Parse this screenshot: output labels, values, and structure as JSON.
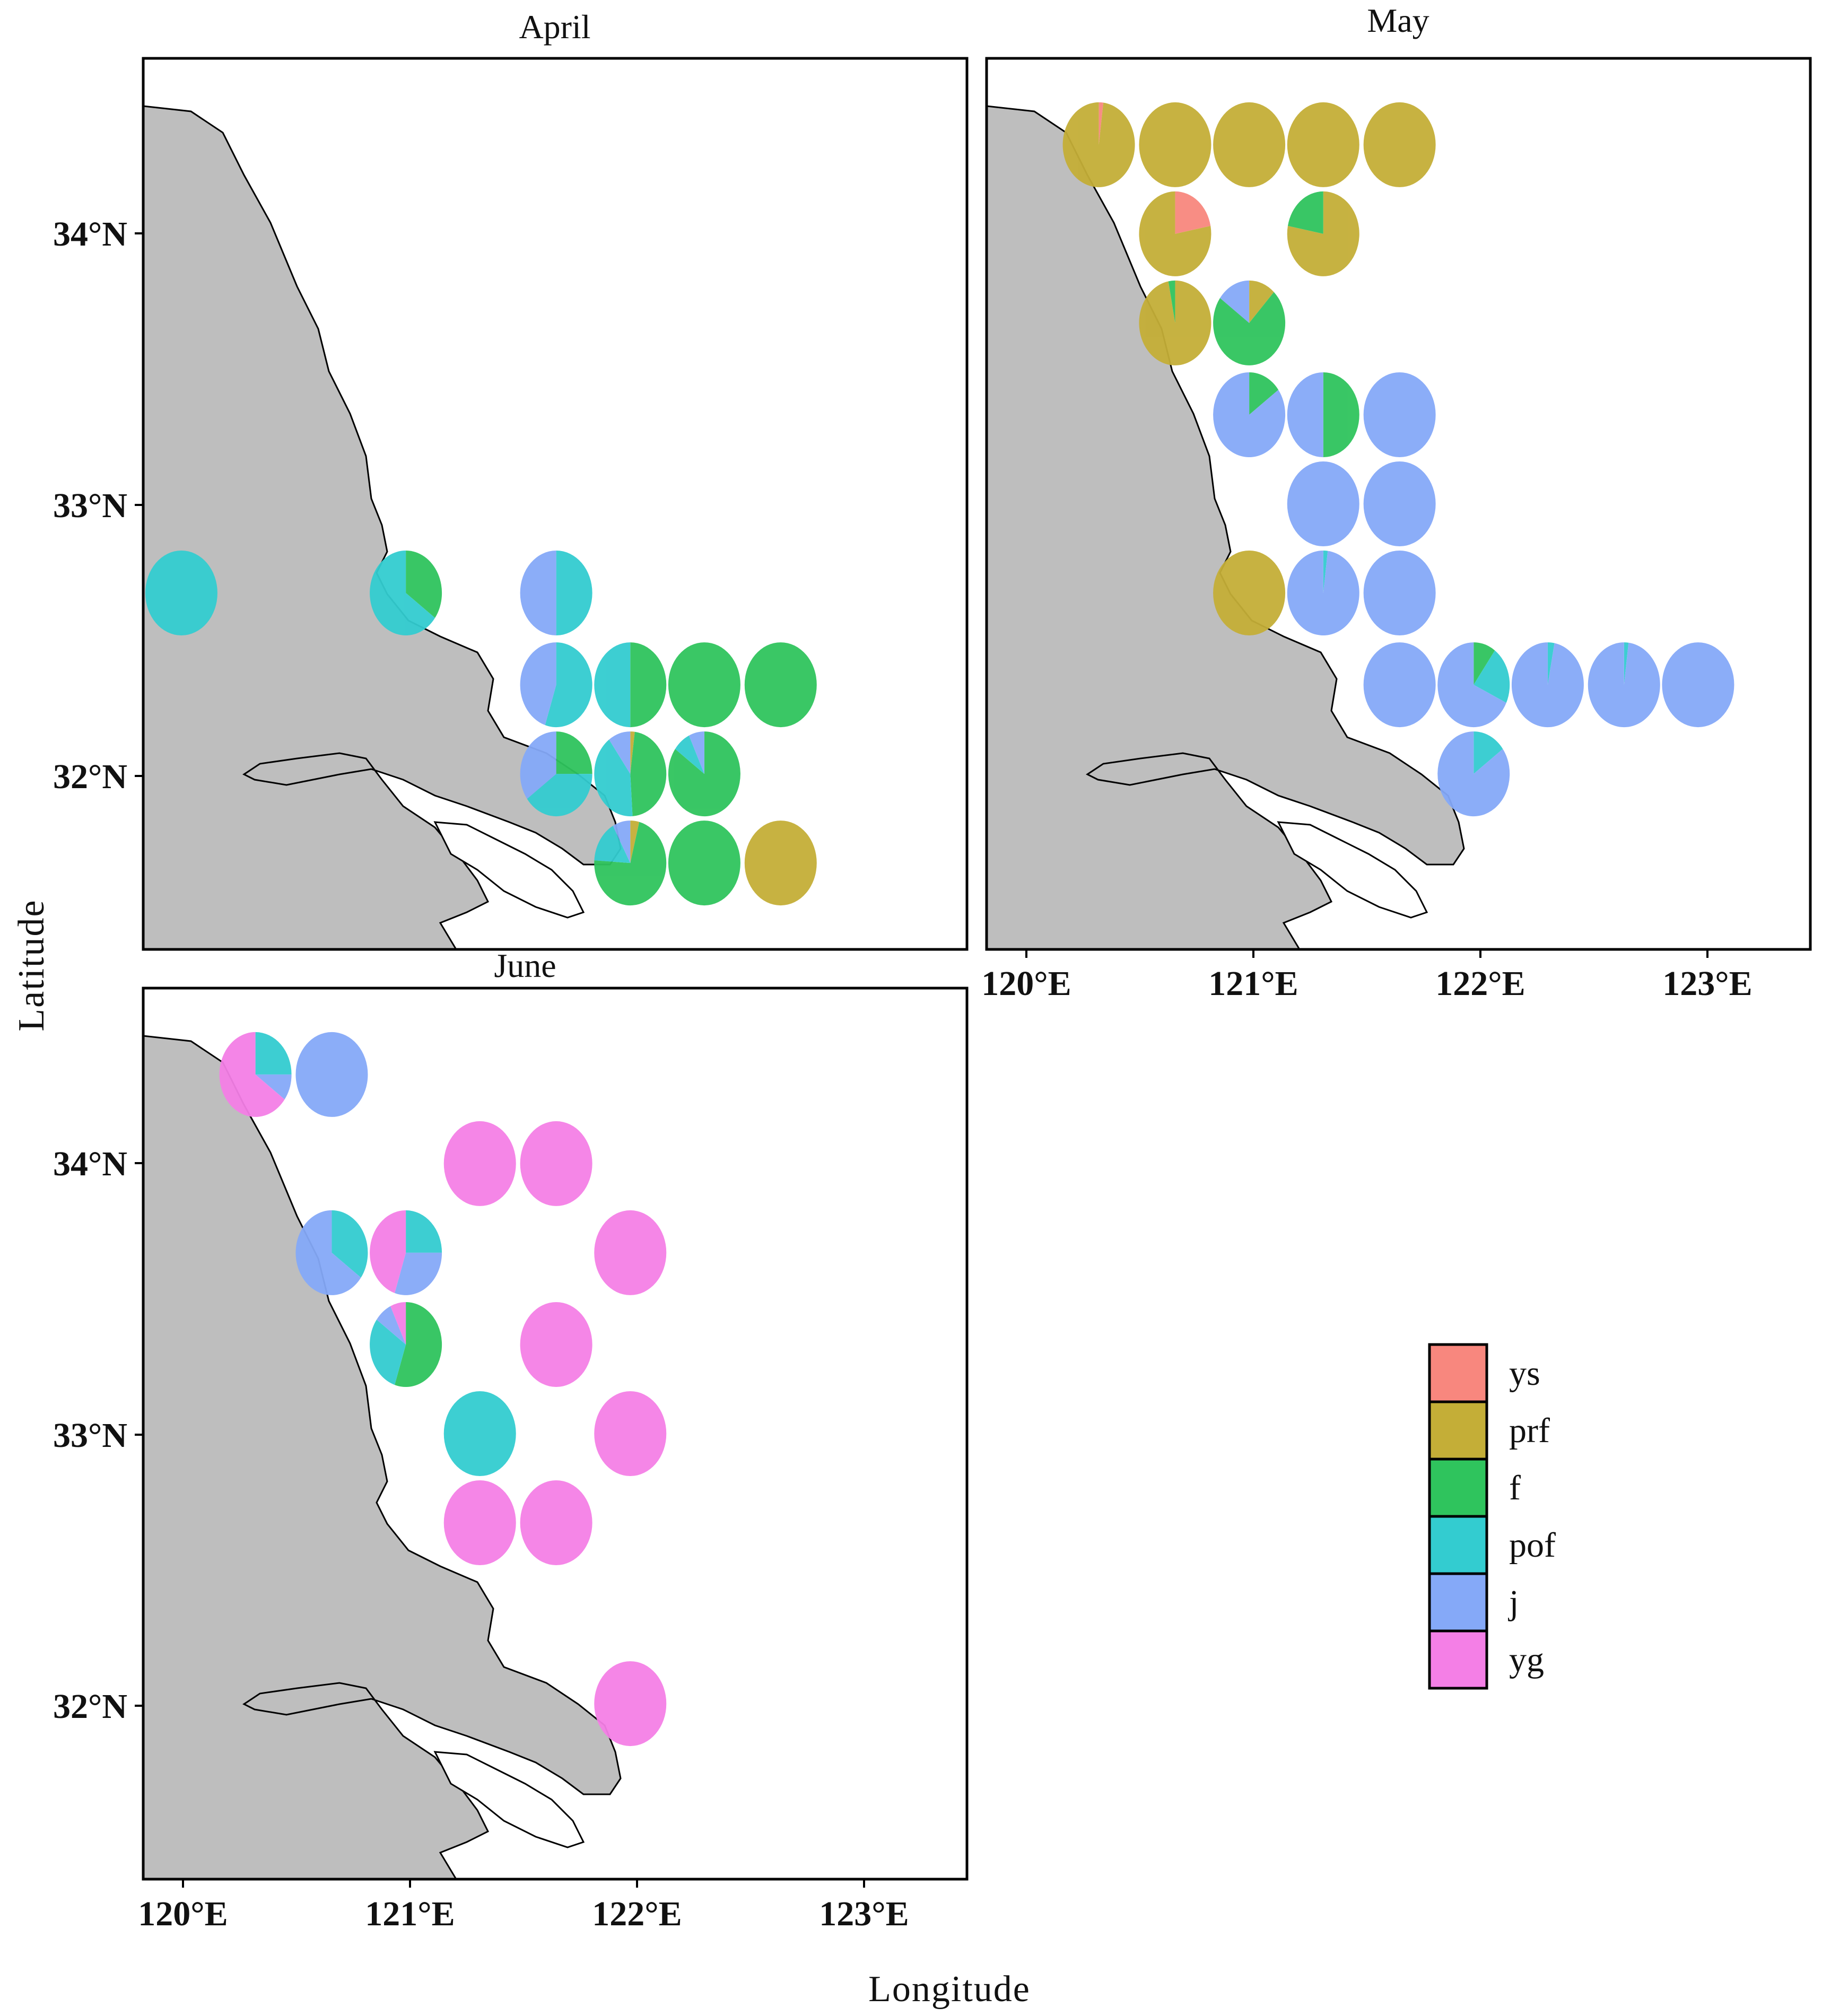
{
  "figure": {
    "xlabel": "Longitude",
    "ylabel": "Latitude",
    "lon_ticks": [
      "120°E",
      "121°E",
      "122°E",
      "123°E"
    ],
    "lat_ticks": [
      "34°N",
      "33°N",
      "32°N"
    ]
  },
  "legend": {
    "entries": [
      {
        "key": "ys",
        "label": "ys",
        "color": "#F8877E"
      },
      {
        "key": "prf",
        "label": "prf",
        "color": "#C4AE37"
      },
      {
        "key": "f",
        "label": "f",
        "color": "#2FC45D"
      },
      {
        "key": "pof",
        "label": "pof",
        "color": "#33CCD0"
      },
      {
        "key": "j",
        "label": "j",
        "color": "#85A9F8"
      },
      {
        "key": "yg",
        "label": "yg",
        "color": "#F47FE6"
      }
    ]
  },
  "land_color": "#BEBEBE",
  "chart_data": {
    "type": "pie-map",
    "categories": [
      "ys",
      "prf",
      "f",
      "pof",
      "j",
      "yg"
    ],
    "lon_range": [
      119.83,
      123.5
    ],
    "lat_range": [
      31.35,
      34.65
    ],
    "panels": [
      {
        "name": "April",
        "title": "April",
        "stations": [
          {
            "lon": 120.0,
            "lat": 32.67,
            "f": 0,
            "pof": 1,
            "j": 0,
            "prf": 0,
            "ys": 0,
            "yg": 0
          },
          {
            "lon": 121.0,
            "lat": 32.67,
            "f": 0.35,
            "pof": 0.65
          },
          {
            "lon": 121.67,
            "lat": 32.67,
            "pof": 0.5,
            "j": 0.5
          },
          {
            "lon": 121.67,
            "lat": 32.33,
            "pof": 0.55,
            "j": 0.45
          },
          {
            "lon": 122.0,
            "lat": 32.33,
            "f": 0.5,
            "pof": 0.5
          },
          {
            "lon": 122.33,
            "lat": 32.33,
            "f": 1
          },
          {
            "lon": 122.67,
            "lat": 32.33,
            "f": 1
          },
          {
            "lon": 121.67,
            "lat": 32.0,
            "f": 0.25,
            "pof": 0.4,
            "j": 0.35
          },
          {
            "lon": 122.0,
            "lat": 32.0,
            "prf": 0.02,
            "f": 0.47,
            "pof": 0.41,
            "j": 0.1
          },
          {
            "lon": 122.33,
            "lat": 32.0,
            "f": 0.85,
            "pof": 0.08,
            "j": 0.07
          },
          {
            "lon": 122.0,
            "lat": 31.67,
            "prf": 0.04,
            "f": 0.72,
            "pof": 0.16,
            "j": 0.08
          },
          {
            "lon": 122.33,
            "lat": 31.67,
            "f": 1
          },
          {
            "lon": 122.67,
            "lat": 31.67,
            "prf": 1
          }
        ]
      },
      {
        "name": "May",
        "title": "May",
        "stations": [
          {
            "lon": 120.33,
            "lat": 34.33,
            "ys": 0.02,
            "prf": 0.98
          },
          {
            "lon": 120.67,
            "lat": 34.33,
            "prf": 1
          },
          {
            "lon": 121.0,
            "lat": 34.33,
            "prf": 1
          },
          {
            "lon": 121.33,
            "lat": 34.33,
            "prf": 1
          },
          {
            "lon": 121.67,
            "lat": 34.33,
            "prf": 1
          },
          {
            "lon": 120.67,
            "lat": 34.0,
            "ys": 0.22,
            "prf": 0.78
          },
          {
            "lon": 121.33,
            "lat": 34.0,
            "f": 0.22,
            "prf": 0.78
          },
          {
            "lon": 120.67,
            "lat": 33.67,
            "f": 0.03,
            "prf": 0.97
          },
          {
            "lon": 121.0,
            "lat": 33.67,
            "prf": 0.12,
            "f": 0.73,
            "j": 0.15
          },
          {
            "lon": 121.0,
            "lat": 33.33,
            "f": 0.15,
            "j": 0.85
          },
          {
            "lon": 121.33,
            "lat": 33.33,
            "f": 0.5,
            "j": 0.5
          },
          {
            "lon": 121.67,
            "lat": 33.33,
            "j": 1
          },
          {
            "lon": 121.33,
            "lat": 33.0,
            "j": 1
          },
          {
            "lon": 121.67,
            "lat": 33.0,
            "j": 1
          },
          {
            "lon": 121.0,
            "lat": 32.67,
            "prf": 1
          },
          {
            "lon": 121.33,
            "lat": 32.67,
            "pof": 0.02,
            "j": 0.98
          },
          {
            "lon": 121.67,
            "lat": 32.67,
            "j": 1
          },
          {
            "lon": 121.67,
            "lat": 32.33,
            "j": 1
          },
          {
            "lon": 122.0,
            "lat": 32.33,
            "f": 0.1,
            "pof": 0.22,
            "j": 0.68
          },
          {
            "lon": 122.33,
            "lat": 32.33,
            "pof": 0.03,
            "j": 0.97
          },
          {
            "lon": 122.67,
            "lat": 32.33,
            "pof": 0.02,
            "j": 0.98
          },
          {
            "lon": 123.0,
            "lat": 32.33,
            "j": 1
          },
          {
            "lon": 122.0,
            "lat": 32.0,
            "pof": 0.15,
            "j": 0.85
          }
        ]
      },
      {
        "name": "June",
        "title": "June",
        "stations": [
          {
            "lon": 120.33,
            "lat": 34.33,
            "pof": 0.25,
            "j": 0.1,
            "yg": 0.65
          },
          {
            "lon": 120.67,
            "lat": 34.33,
            "j": 1
          },
          {
            "lon": 121.33,
            "lat": 34.0,
            "yg": 1
          },
          {
            "lon": 121.67,
            "lat": 34.0,
            "yg": 1
          },
          {
            "lon": 120.67,
            "lat": 33.67,
            "pof": 0.35,
            "j": 0.65
          },
          {
            "lon": 121.0,
            "lat": 33.67,
            "pof": 0.25,
            "j": 0.3,
            "yg": 0.45
          },
          {
            "lon": 122.0,
            "lat": 33.67,
            "yg": 1
          },
          {
            "lon": 121.0,
            "lat": 33.33,
            "f": 0.55,
            "pof": 0.3,
            "j": 0.08,
            "yg": 0.07
          },
          {
            "lon": 121.67,
            "lat": 33.33,
            "yg": 1
          },
          {
            "lon": 121.33,
            "lat": 33.0,
            "pof": 1
          },
          {
            "lon": 122.0,
            "lat": 33.0,
            "yg": 1
          },
          {
            "lon": 121.33,
            "lat": 32.67,
            "yg": 1
          },
          {
            "lon": 121.67,
            "lat": 32.67,
            "yg": 1
          },
          {
            "lon": 122.0,
            "lat": 32.0,
            "yg": 1
          }
        ]
      }
    ]
  }
}
